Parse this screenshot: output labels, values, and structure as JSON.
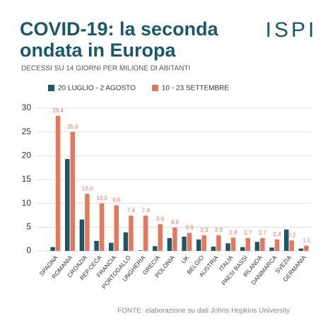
{
  "logo": "ISPI",
  "chart_data": {
    "type": "bar",
    "title": "COVID-19: la seconda ondata in Europa",
    "subtitle": "DECESSI SU 14 GIORNI PER MILIONE DI ABITANTI",
    "source": "FONTE: elaborazione su dati Johns Hopkins University",
    "categories": [
      "SPAGNA",
      "ROMANIA",
      "CROAZIA",
      "REP.CECA",
      "FRANCIA",
      "PORTOGALLO",
      "UNGHERIA",
      "GRECIA",
      "POLONIA",
      "UK",
      "BELGIO",
      "AUSTRIA",
      "ITALIA",
      "PAESI BASSI",
      "IRLANDA",
      "DANIMARCA",
      "SVEZIA",
      "GERMANIA"
    ],
    "series": [
      {
        "name": "20 LUGLIO - 2 AGOSTO",
        "color": "#17596a",
        "values": [
          0.8,
          19.3,
          6.6,
          2.1,
          1.7,
          3.9,
          0.1,
          1.0,
          2.7,
          3.0,
          2.4,
          0.9,
          1.6,
          0.8,
          1.9,
          0.7,
          4.5,
          0.5
        ]
      },
      {
        "name": "10 - 23 SETTEMBRE",
        "color": "#e8775a",
        "values": [
          28.4,
          25,
          12,
          10,
          9.6,
          7.4,
          7.4,
          5.6,
          4.9,
          3.8,
          3.3,
          3.3,
          2.8,
          2.7,
          2.7,
          2.4,
          2.2,
          1.1
        ],
        "value_labels": [
          "28.4",
          "25.0",
          "12.0",
          "10.0",
          "9.6",
          "7.4",
          "7.4",
          "5.6",
          "4.9",
          "3.8",
          "3.3",
          "3.3",
          "2.8",
          "2.7",
          "2.7",
          "2.4",
          "2.2",
          "1.1"
        ]
      }
    ],
    "ylim": [
      0,
      30
    ],
    "yticks": [
      0,
      5,
      10,
      15,
      20,
      25,
      30
    ],
    "grid": true
  }
}
